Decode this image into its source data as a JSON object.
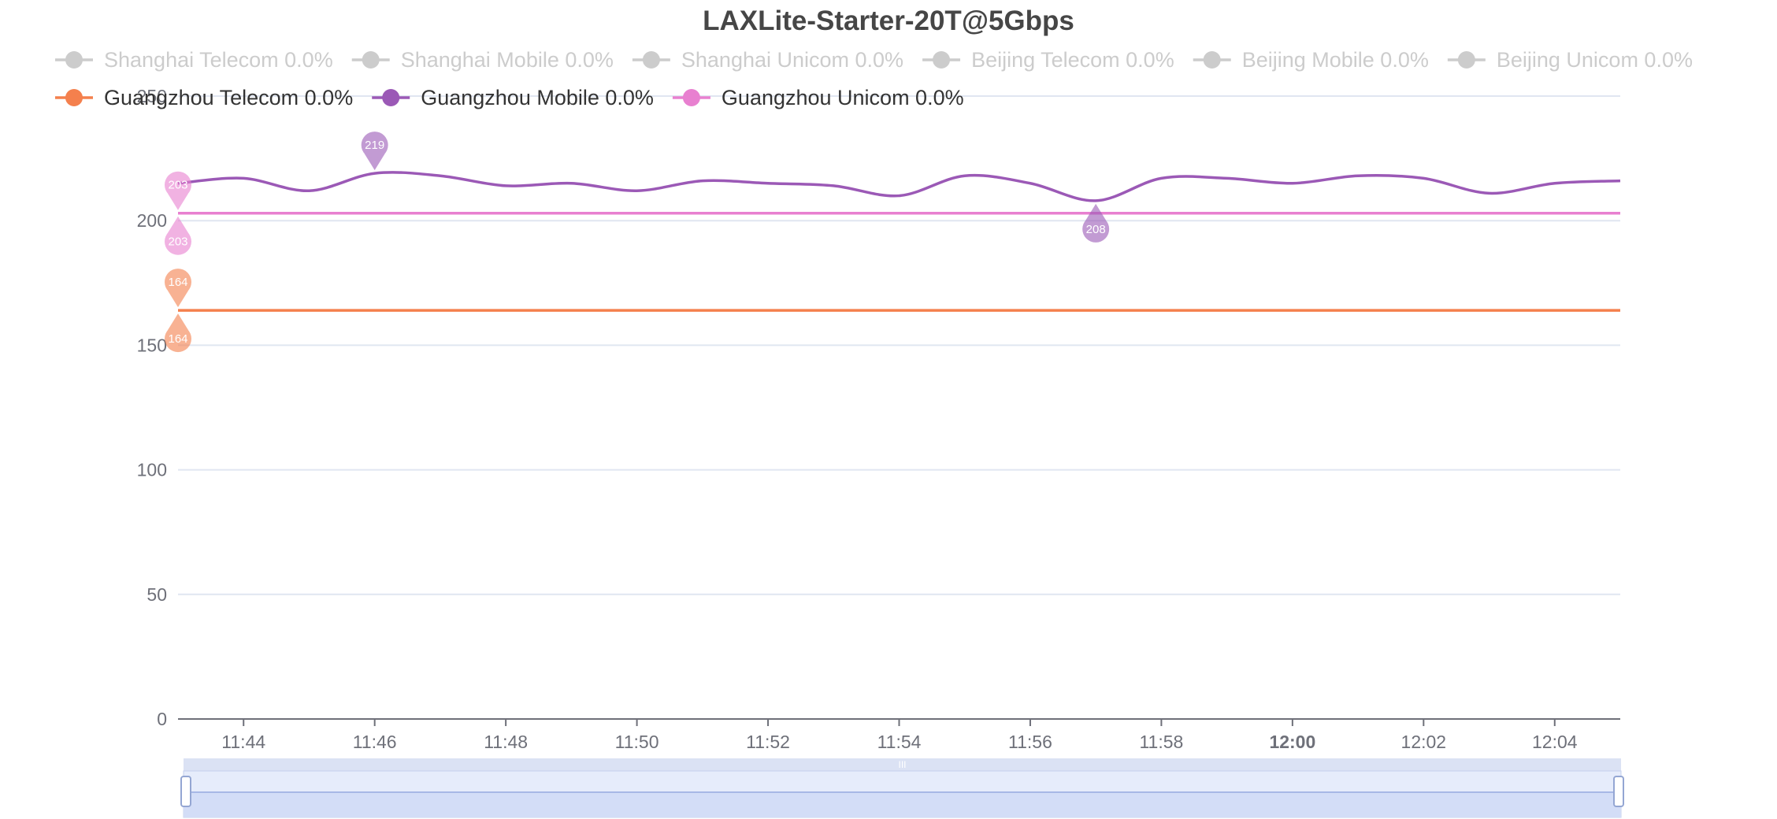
{
  "chart_data": {
    "type": "line",
    "title": "LAXLite-Starter-20T@5Gbps",
    "xlabel": "",
    "ylabel": "",
    "ylim": [
      0,
      250
    ],
    "yticks": [
      "0",
      "50",
      "100",
      "150",
      "200",
      "250"
    ],
    "x_range_minutes": [
      "11:43",
      "12:05"
    ],
    "xticks": [
      "11:44",
      "11:46",
      "11:48",
      "11:50",
      "11:52",
      "11:54",
      "11:56",
      "11:58",
      "12:00",
      "12:02",
      "12:04"
    ],
    "xtick_bold": "12:00",
    "grid": true,
    "legend_position": "top",
    "legend_items": [
      {
        "label": "Shanghai Telecom 0.0%",
        "color": "#cccccc",
        "active": false
      },
      {
        "label": "Shanghai Mobile 0.0%",
        "color": "#cccccc",
        "active": false
      },
      {
        "label": "Shanghai Unicom 0.0%",
        "color": "#cccccc",
        "active": false
      },
      {
        "label": "Beijing Telecom 0.0%",
        "color": "#cccccc",
        "active": false
      },
      {
        "label": "Beijing Mobile 0.0%",
        "color": "#cccccc",
        "active": false
      },
      {
        "label": "Beijing Unicom 0.0%",
        "color": "#cccccc",
        "active": false
      },
      {
        "label": "Guangzhou Telecom 0.0%",
        "color": "#f4804d",
        "active": true
      },
      {
        "label": "Guangzhou Mobile 0.0%",
        "color": "#9b59b6",
        "active": true
      },
      {
        "label": "Guangzhou Unicom 0.0%",
        "color": "#e880d0",
        "active": true
      }
    ],
    "series": [
      {
        "name": "Guangzhou Telecom 0.0%",
        "color": "#f4804d",
        "x": [
          "11:43",
          "11:44",
          "11:45",
          "11:46",
          "11:47",
          "11:48",
          "11:49",
          "11:50",
          "11:51",
          "11:52",
          "11:53",
          "11:54",
          "11:55",
          "11:56",
          "11:57",
          "11:58",
          "11:59",
          "12:00",
          "12:01",
          "12:02",
          "12:03",
          "12:04",
          "12:05"
        ],
        "values": [
          164,
          164,
          164,
          164,
          164,
          164,
          164,
          164,
          164,
          164,
          164,
          164,
          164,
          164,
          164,
          164,
          164,
          164,
          164,
          164,
          164,
          164,
          164
        ],
        "markers": [
          {
            "label": "164",
            "x": "11:43",
            "y": 164,
            "kind": "max"
          },
          {
            "label": "164",
            "x": "11:43",
            "y": 164,
            "kind": "min"
          }
        ]
      },
      {
        "name": "Guangzhou Mobile 0.0%",
        "color": "#9b59b6",
        "x": [
          "11:43",
          "11:44",
          "11:45",
          "11:46",
          "11:47",
          "11:48",
          "11:49",
          "11:50",
          "11:51",
          "11:52",
          "11:53",
          "11:54",
          "11:55",
          "11:56",
          "11:57",
          "11:58",
          "11:59",
          "12:00",
          "12:01",
          "12:02",
          "12:03",
          "12:04",
          "12:05"
        ],
        "values": [
          215,
          217,
          212,
          219,
          218,
          214,
          215,
          212,
          216,
          215,
          214,
          210,
          218,
          215,
          208,
          217,
          217,
          215,
          218,
          217,
          211,
          215,
          216
        ],
        "markers": [
          {
            "label": "219",
            "x": "11:46",
            "y": 219,
            "kind": "max"
          },
          {
            "label": "208",
            "x": "11:57",
            "y": 208,
            "kind": "min"
          }
        ]
      },
      {
        "name": "Guangzhou Unicom 0.0%",
        "color": "#e880d0",
        "x": [
          "11:43",
          "11:44",
          "11:45",
          "11:46",
          "11:47",
          "11:48",
          "11:49",
          "11:50",
          "11:51",
          "11:52",
          "11:53",
          "11:54",
          "11:55",
          "11:56",
          "11:57",
          "11:58",
          "11:59",
          "12:00",
          "12:01",
          "12:02",
          "12:03",
          "12:04",
          "12:05"
        ],
        "values": [
          203,
          203,
          203,
          203,
          203,
          203,
          203,
          203,
          203,
          203,
          203,
          203,
          203,
          203,
          203,
          203,
          203,
          203,
          203,
          203,
          203,
          203,
          203
        ],
        "markers": [
          {
            "label": "203",
            "x": "11:43",
            "y": 203,
            "kind": "max"
          },
          {
            "label": "203",
            "x": "11:43",
            "y": 203,
            "kind": "min"
          }
        ]
      }
    ],
    "data_zoom": {
      "start": 0,
      "end": 1,
      "grip_label": "III"
    }
  }
}
